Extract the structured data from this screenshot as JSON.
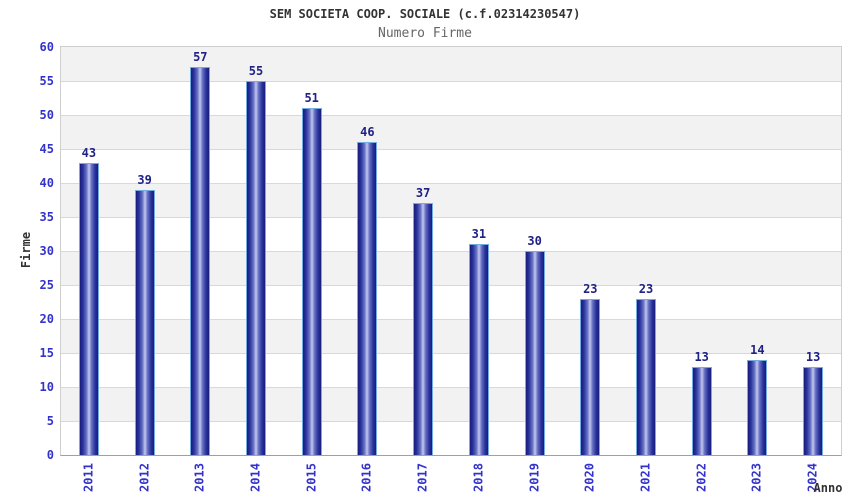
{
  "chart_data": {
    "type": "bar",
    "title": "SEM SOCIETA COOP. SOCIALE (c.f.02314230547)",
    "subtitle": "Numero Firme",
    "xlabel": "Anno",
    "ylabel": "Firme",
    "categories": [
      "2011",
      "2012",
      "2013",
      "2014",
      "2015",
      "2016",
      "2017",
      "2018",
      "2019",
      "2020",
      "2021",
      "2022",
      "2023",
      "2024"
    ],
    "values": [
      43,
      39,
      57,
      55,
      51,
      46,
      37,
      31,
      30,
      23,
      23,
      13,
      14,
      13
    ],
    "ylim": [
      0,
      60
    ],
    "ytick_step": 5,
    "yticks": [
      0,
      5,
      10,
      15,
      20,
      25,
      30,
      35,
      40,
      45,
      50,
      55,
      60
    ],
    "legend": "none",
    "grid": "horizontal-bands-every-5",
    "colors": {
      "title": "#333333",
      "subtitle": "#666666",
      "axis_tick_labels": "#3333cc",
      "value_labels": "#1f2185",
      "bar_dark": "#161d7e",
      "bar_light": "#c3c8ee",
      "bar_border": "#74ace2",
      "band_gray": "#f2f2f2",
      "band_white": "#ffffff",
      "grid_line": "#d9d9d9",
      "plot_border": "#cfcfcf"
    }
  }
}
